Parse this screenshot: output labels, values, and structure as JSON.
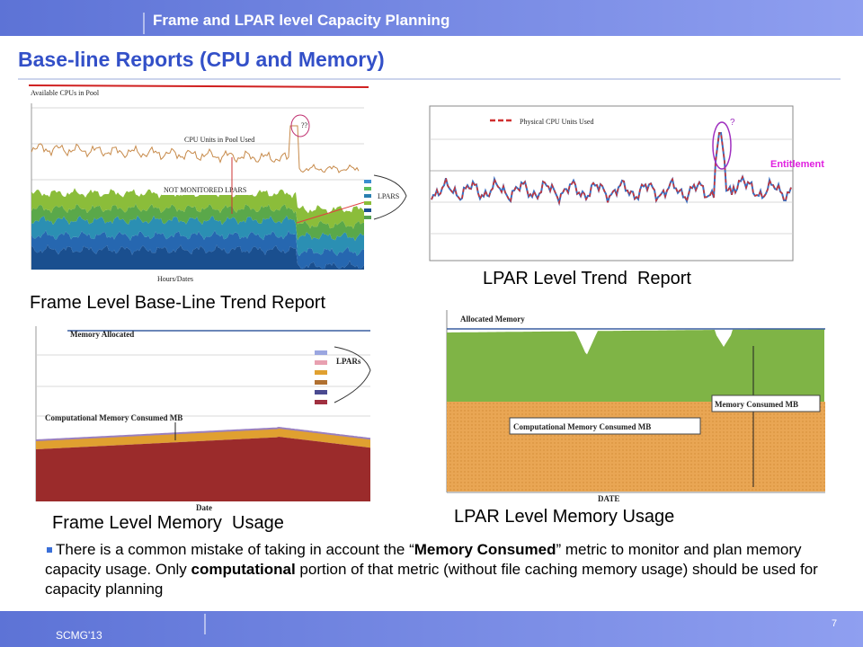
{
  "header": {
    "title": "Frame and LPAR level Capacity Planning"
  },
  "slide": {
    "title": "Base-line Reports (CPU and Memory)"
  },
  "figures": [
    {
      "caption": "Frame Level Base-Line Trend Report",
      "labels": {
        "top": "Available CPUs in Pool",
        "line": "CPU Units in Pool Used",
        "area": "NOT MONITORED LPARS",
        "legend": "LPARS",
        "xaxis": "Hours/Dates",
        "mark": "??"
      }
    },
    {
      "caption": "LPAR Level Trend  Report",
      "labels": {
        "legend": "Physical CPU Units Used",
        "mark": "?",
        "reference": "Entitlement"
      }
    },
    {
      "caption": "Frame Level Memory  Usage",
      "labels": {
        "top": "Memory Allocated",
        "legend": "LPARs",
        "area": "Computational Memory Consumed MB",
        "xaxis": "Date"
      }
    },
    {
      "caption": "LPAR Level Memory Usage",
      "labels": {
        "top": "Allocated Memory",
        "consumed": "Memory Consumed MB",
        "area": "Computational Memory Consumed MB",
        "xaxis": "DATE"
      }
    }
  ],
  "bullet": {
    "segments": [
      {
        "text": "There is a common mistake of taking in account the “",
        "bold": false
      },
      {
        "text": "Memory Consumed",
        "bold": true
      },
      {
        "text": "” metric to monitor and plan memory capacity usage. Only ",
        "bold": false
      },
      {
        "text": "computational",
        "bold": true
      },
      {
        "text": " portion of that metric (without file caching memory usage) should be used for capacity planning",
        "bold": false
      }
    ]
  },
  "footer": {
    "left": "SCMG'13",
    "page": "7"
  }
}
